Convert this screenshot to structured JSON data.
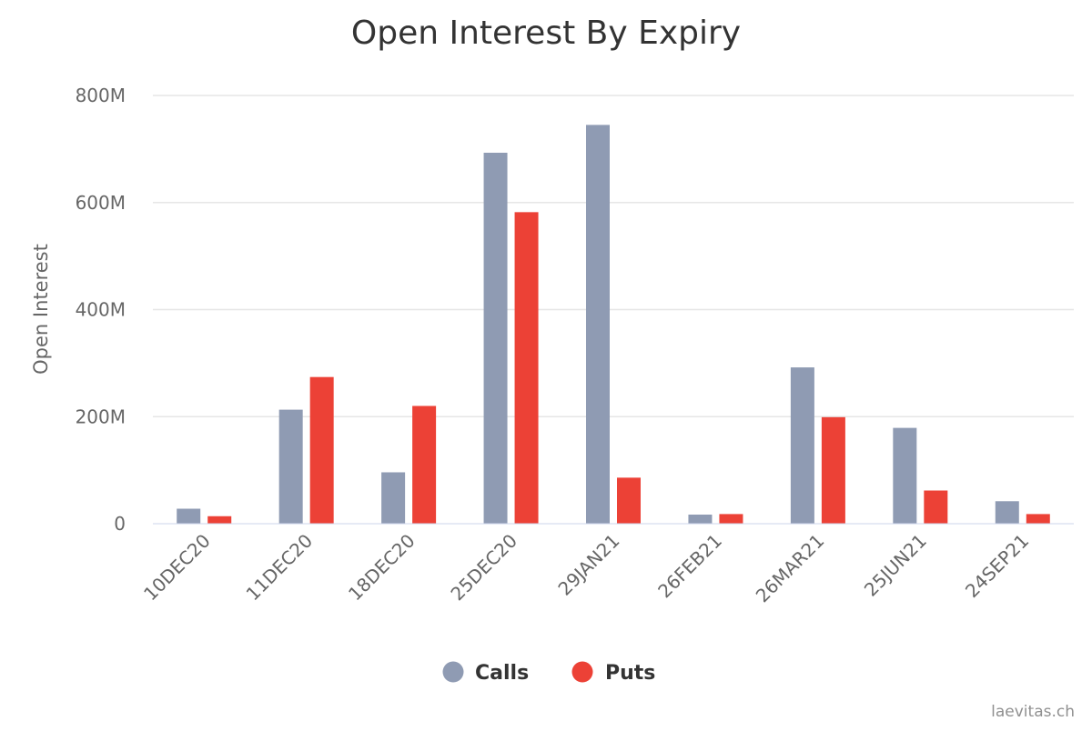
{
  "chart_data": {
    "type": "bar",
    "title": "Open Interest By Expiry",
    "xlabel": "",
    "ylabel": "Open Interest",
    "categories": [
      "10DEC20",
      "11DEC20",
      "18DEC20",
      "25DEC20",
      "29JAN21",
      "26FEB21",
      "26MAR21",
      "25JUN21",
      "24SEP21"
    ],
    "series": [
      {
        "name": "Calls",
        "color": "#8f9bb3",
        "values": [
          28000000,
          213000000,
          96000000,
          693000000,
          745000000,
          17000000,
          292000000,
          179000000,
          42000000
        ]
      },
      {
        "name": "Puts",
        "color": "#ec4136",
        "values": [
          14000000,
          274000000,
          220000000,
          582000000,
          86000000,
          18000000,
          199000000,
          62000000,
          18000000
        ]
      }
    ],
    "ylim": [
      0,
      800000000
    ],
    "yticks": [
      "0",
      "200M",
      "400M",
      "600M",
      "800M"
    ],
    "grid": true,
    "legend_position": "bottom-center",
    "credit": "laevitas.ch"
  }
}
